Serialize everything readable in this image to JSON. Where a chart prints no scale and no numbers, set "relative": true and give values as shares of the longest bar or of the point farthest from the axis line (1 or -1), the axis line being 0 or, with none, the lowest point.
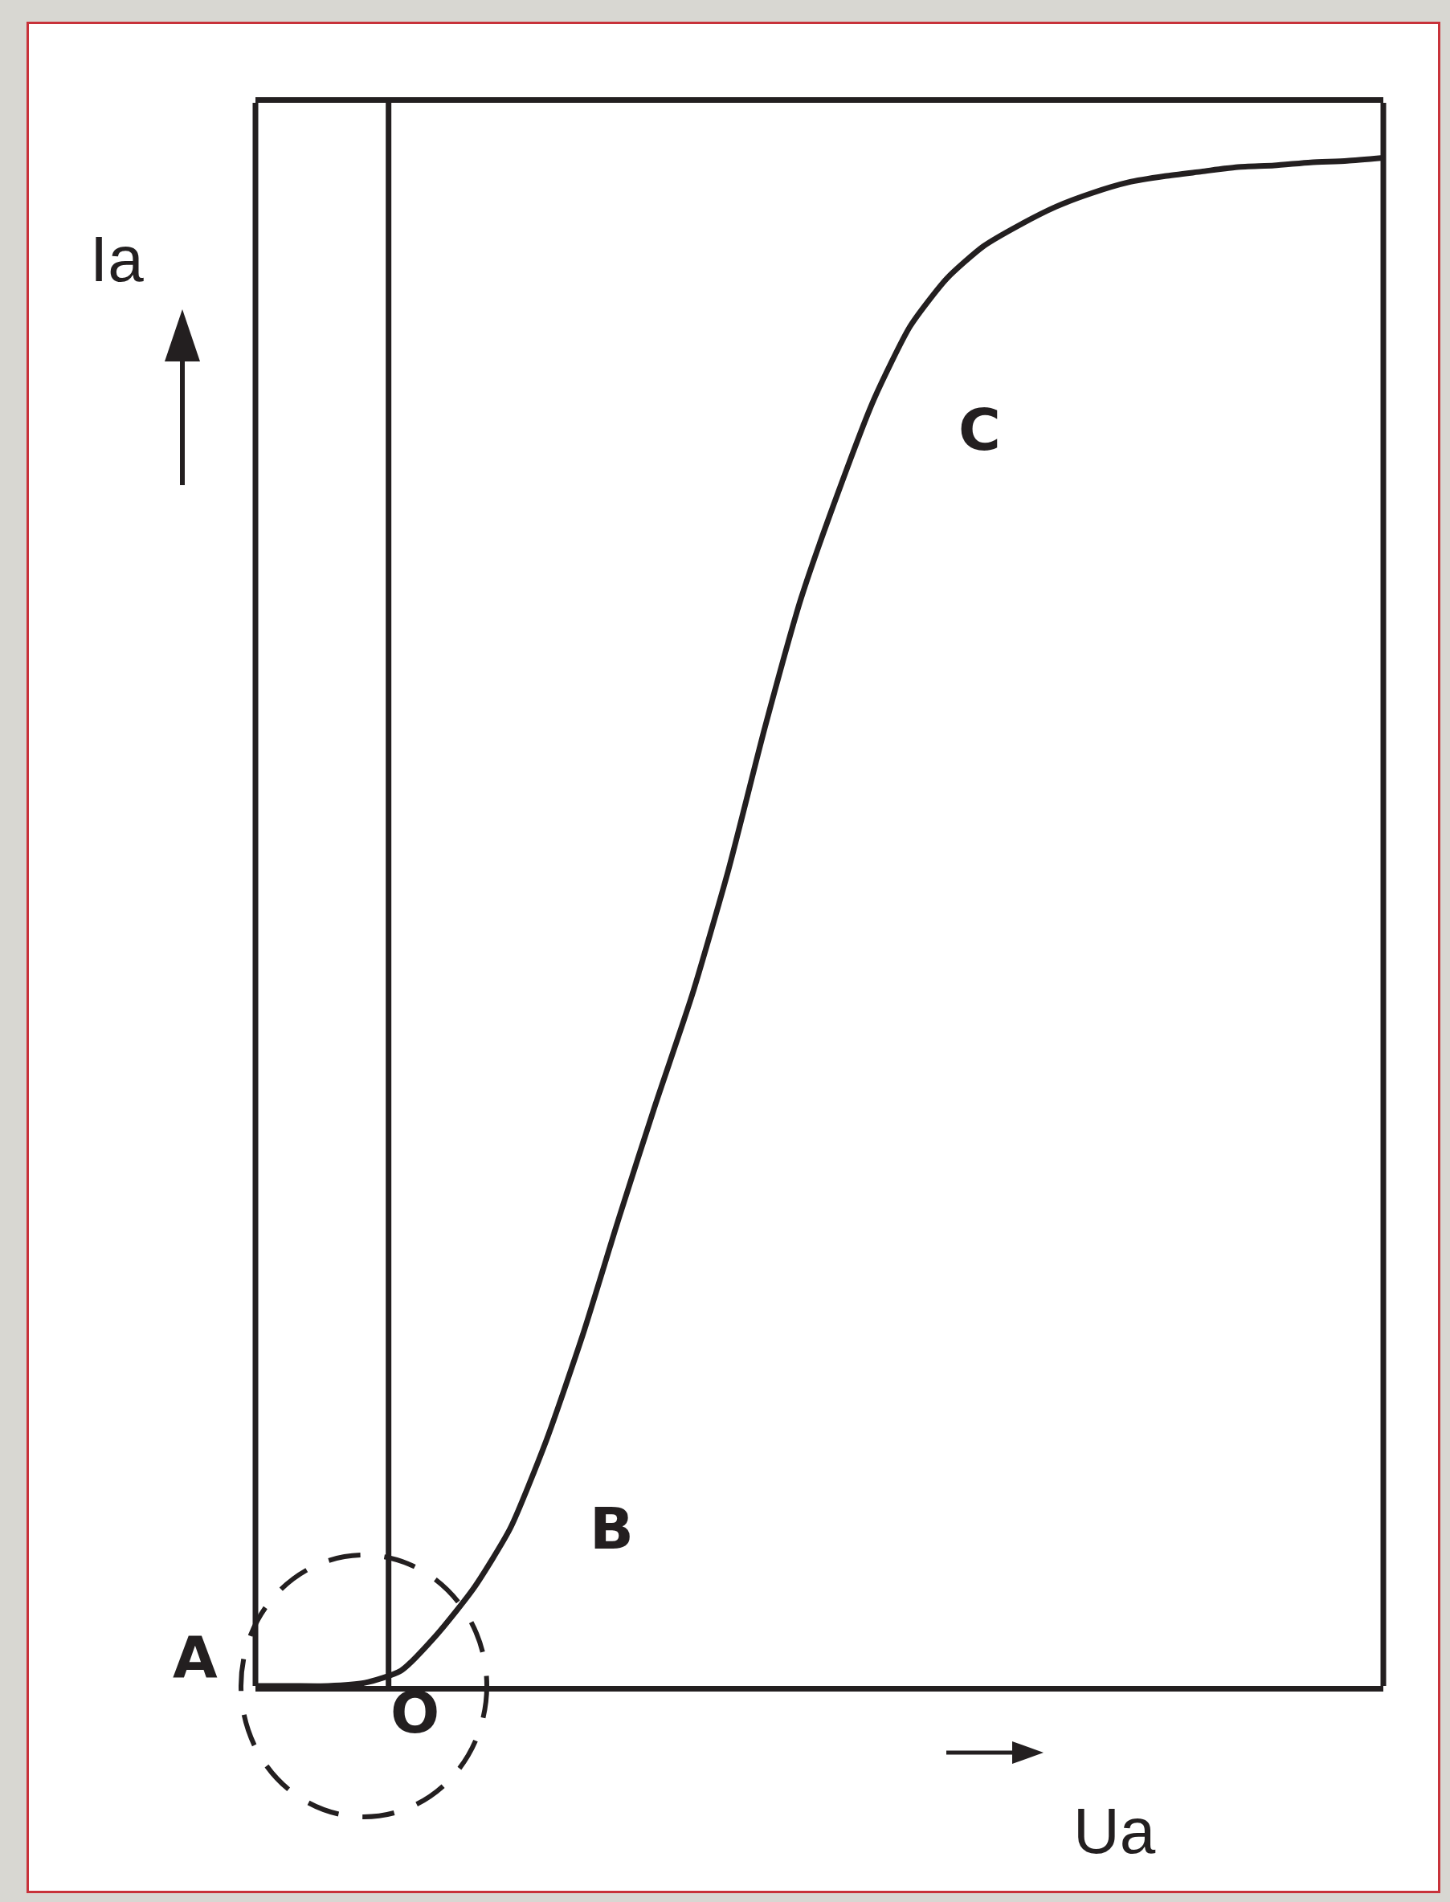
{
  "chart_data": {
    "type": "line",
    "relative": true,
    "xlabel": "Ua",
    "ylabel": "Ia",
    "marker": "none",
    "line_style": "solid",
    "grid": false,
    "categories": [
      null,
      null,
      null,
      null,
      null,
      null,
      null,
      null,
      null,
      null,
      null,
      null,
      null,
      null,
      null,
      null,
      null,
      null,
      null,
      null,
      null,
      null,
      null,
      null,
      null,
      null,
      null,
      null,
      null,
      null,
      null,
      null
    ],
    "series": [
      {
        "color": "#231f20",
        "values": [
          0,
          0,
          0,
          0.002,
          0.01,
          0.034,
          0.064,
          0.103,
          0.161,
          0.23,
          0.307,
          0.381,
          0.452,
          0.534,
          0.627,
          0.712,
          0.78,
          0.842,
          0.89,
          0.921,
          0.942,
          0.956,
          0.968,
          0.977,
          0.984,
          0.988,
          0.991,
          0.994,
          0.995,
          0.997,
          0.998,
          1
        ]
      }
    ],
    "annotations": [
      "A",
      "O",
      "B",
      "C"
    ]
  }
}
